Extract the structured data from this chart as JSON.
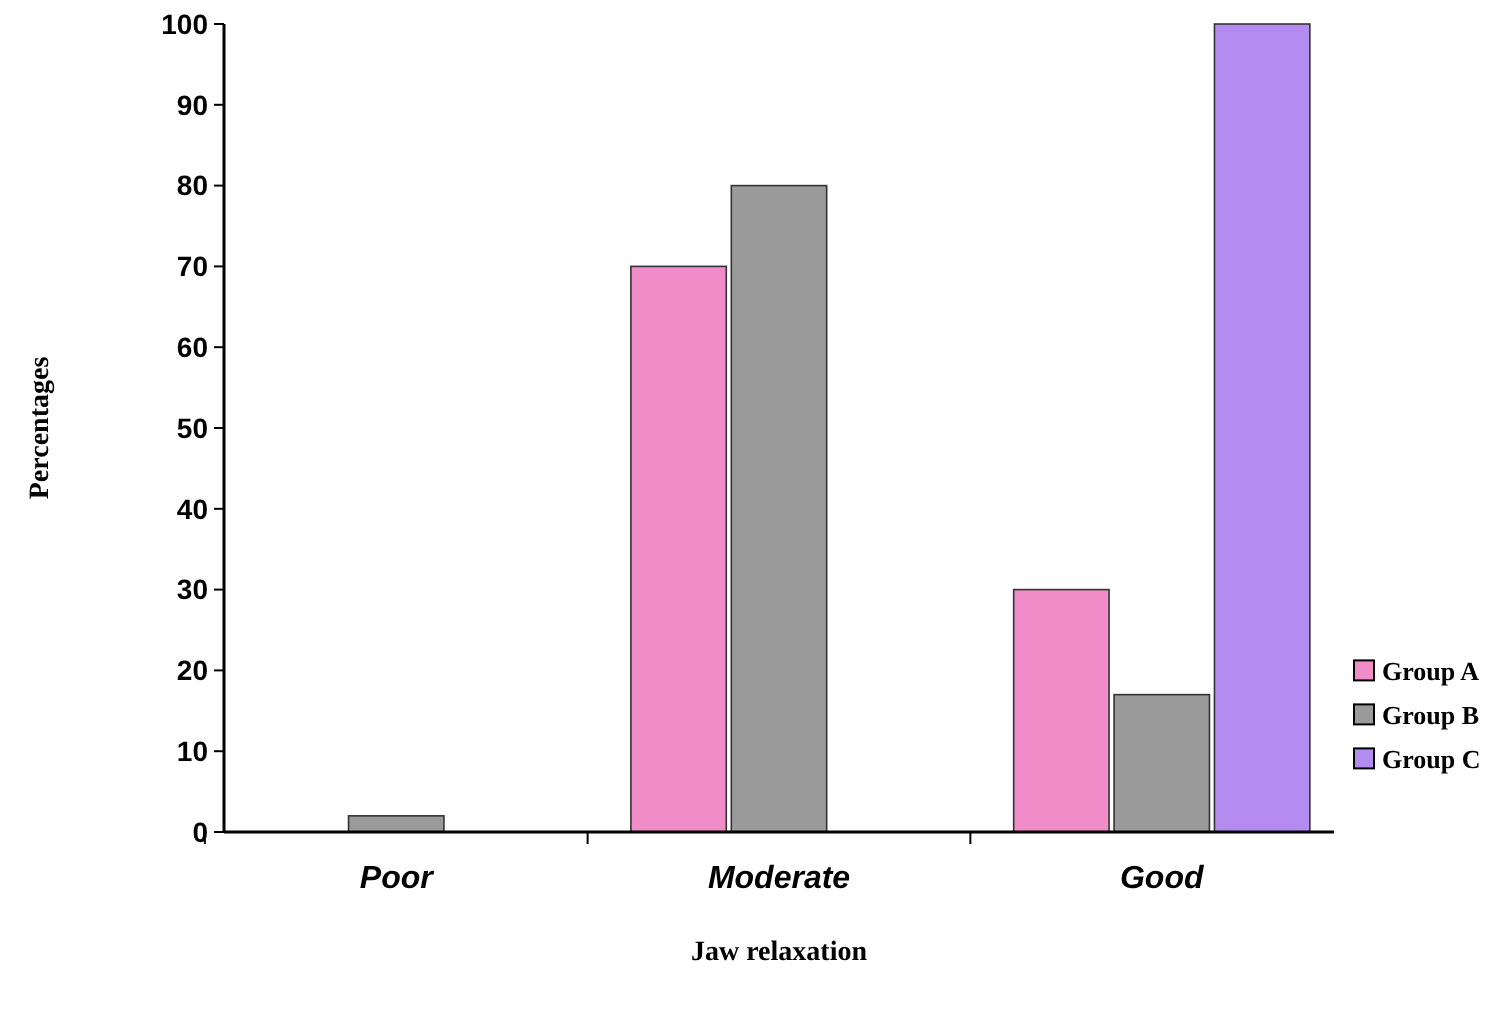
{
  "chart_data": {
    "type": "bar",
    "xlabel": "Jaw relaxation",
    "ylabel": "Percentages",
    "categories": [
      "Poor",
      "Moderate",
      "Good"
    ],
    "series": [
      {
        "name": "Group A",
        "color": "#f08cc8",
        "values": [
          0,
          70,
          30
        ]
      },
      {
        "name": "Group B",
        "color": "#9a9a9a",
        "values": [
          2,
          80,
          17
        ]
      },
      {
        "name": "Group C",
        "color": "#b48cf0",
        "values": [
          0,
          0,
          100
        ]
      }
    ],
    "ylim": [
      0,
      100
    ],
    "yticks": [
      0,
      10,
      20,
      30,
      40,
      50,
      60,
      70,
      80,
      90,
      100
    ],
    "grid": false,
    "legend": "right"
  }
}
